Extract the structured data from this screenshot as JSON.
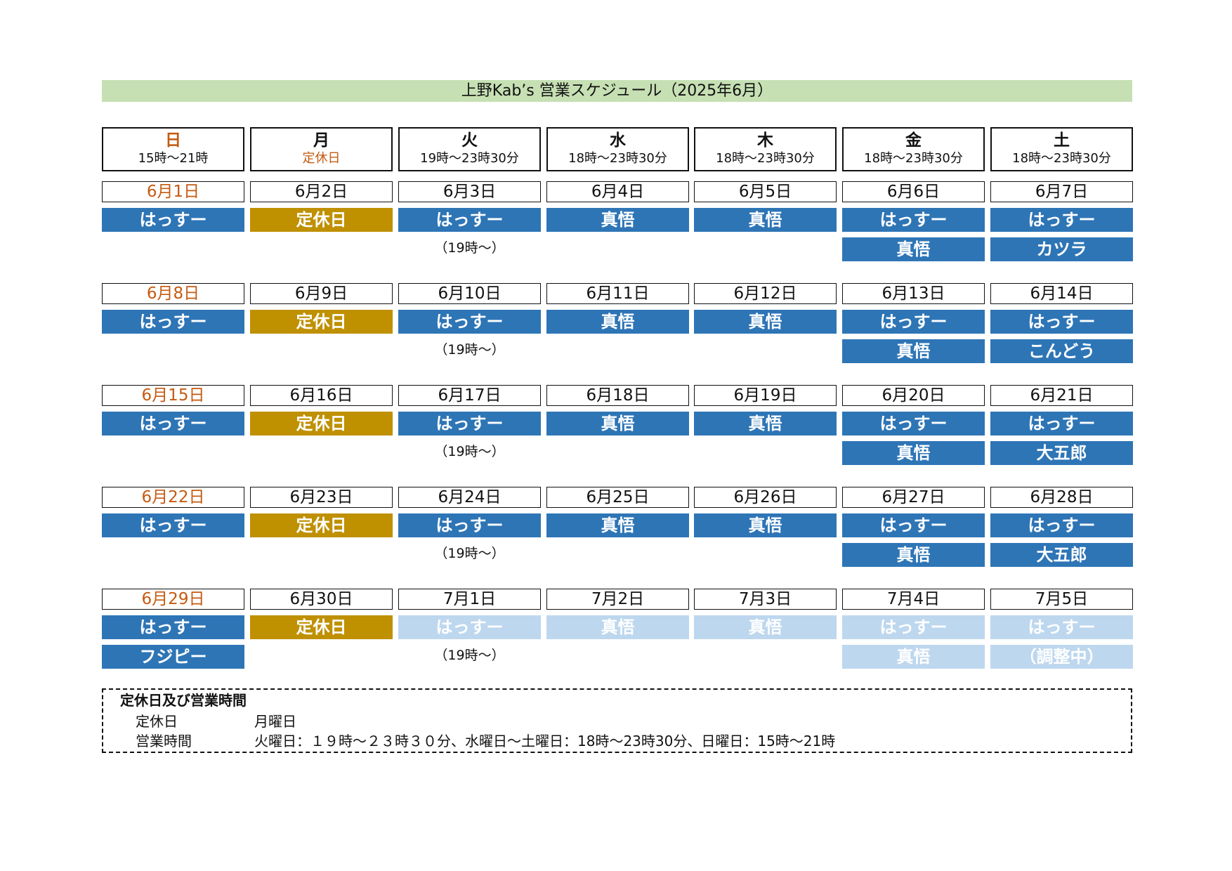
{
  "title": "上野Kab’s 営業スケジュール（2025年6月）",
  "days": [
    {
      "name": "日",
      "hours": "15時～21時"
    },
    {
      "name": "月",
      "hours": "定休日"
    },
    {
      "name": "火",
      "hours": "19時～23時30分"
    },
    {
      "name": "水",
      "hours": "18時～23時30分"
    },
    {
      "name": "木",
      "hours": "18時～23時30分"
    },
    {
      "name": "金",
      "hours": "18時～23時30分"
    },
    {
      "name": "土",
      "hours": "18時～23時30分"
    }
  ],
  "weeks": [
    {
      "dates": [
        "6月1日",
        "6月2日",
        "6月3日",
        "6月4日",
        "6月5日",
        "6月6日",
        "6月7日"
      ],
      "primary": [
        "はっすー",
        "定休日",
        "はっすー",
        "真悟",
        "真悟",
        "はっすー",
        "はっすー"
      ],
      "secondary": [
        "",
        "",
        "（19時～）",
        "",
        "",
        "真悟",
        "カツラ"
      ]
    },
    {
      "dates": [
        "6月8日",
        "6月9日",
        "6月10日",
        "6月11日",
        "6月12日",
        "6月13日",
        "6月14日"
      ],
      "primary": [
        "はっすー",
        "定休日",
        "はっすー",
        "真悟",
        "真悟",
        "はっすー",
        "はっすー"
      ],
      "secondary": [
        "",
        "",
        "（19時～）",
        "",
        "",
        "真悟",
        "こんどう"
      ]
    },
    {
      "dates": [
        "6月15日",
        "6月16日",
        "6月17日",
        "6月18日",
        "6月19日",
        "6月20日",
        "6月21日"
      ],
      "primary": [
        "はっすー",
        "定休日",
        "はっすー",
        "真悟",
        "真悟",
        "はっすー",
        "はっすー"
      ],
      "secondary": [
        "",
        "",
        "（19時～）",
        "",
        "",
        "真悟",
        "大五郎"
      ]
    },
    {
      "dates": [
        "6月22日",
        "6月23日",
        "6月24日",
        "6月25日",
        "6月26日",
        "6月27日",
        "6月28日"
      ],
      "primary": [
        "はっすー",
        "定休日",
        "はっすー",
        "真悟",
        "真悟",
        "はっすー",
        "はっすー"
      ],
      "secondary": [
        "",
        "",
        "（19時～）",
        "",
        "",
        "真悟",
        "大五郎"
      ]
    },
    {
      "dates": [
        "6月29日",
        "6月30日",
        "7月1日",
        "7月2日",
        "7月3日",
        "7月4日",
        "7月5日"
      ],
      "primary": [
        "はっすー",
        "定休日",
        "はっすー",
        "真悟",
        "真悟",
        "はっすー",
        "はっすー"
      ],
      "secondary": [
        "フジピー",
        "",
        "（19時～）",
        "",
        "",
        "真悟",
        "（調整中）"
      ]
    }
  ],
  "info": {
    "title": "定休日及び営業時間",
    "closed_label": "定休日",
    "closed_value": "月曜日",
    "hours_label": "営業時間",
    "hours_value": "火曜日：１９時～２３時３０分、水曜日～土曜日：18時～23時30分、日曜日：15時～21時"
  },
  "colors": {
    "title_bg": "#c6e0b4",
    "staff_bar": "#2e75b6",
    "closed_bar": "#bf9000",
    "future_bar": "#bdd7ee",
    "sunday_text": "#c55a11"
  }
}
